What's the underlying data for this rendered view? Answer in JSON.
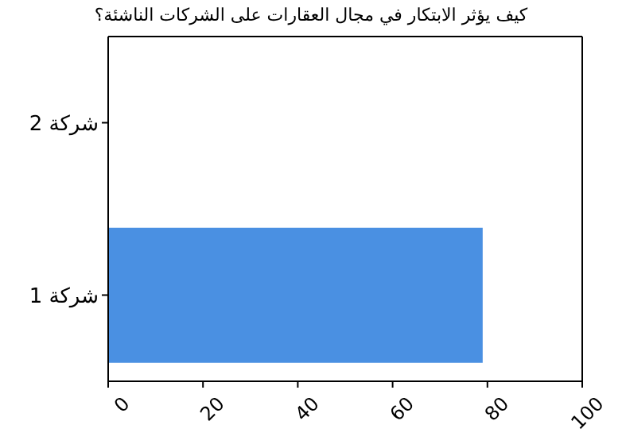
{
  "chart_data": {
    "type": "bar",
    "orientation": "horizontal",
    "title": "كيف يؤثر الابتكار في مجال العقارات على الشركات الناشئة؟",
    "categories": [
      "شركة 2",
      "شركة 1"
    ],
    "values": [
      0,
      79
    ],
    "color": "#4a90e2",
    "xlim": [
      0,
      100
    ],
    "xticks": [
      0,
      20,
      40,
      60,
      80,
      100
    ],
    "grid": false,
    "legend": false
  }
}
